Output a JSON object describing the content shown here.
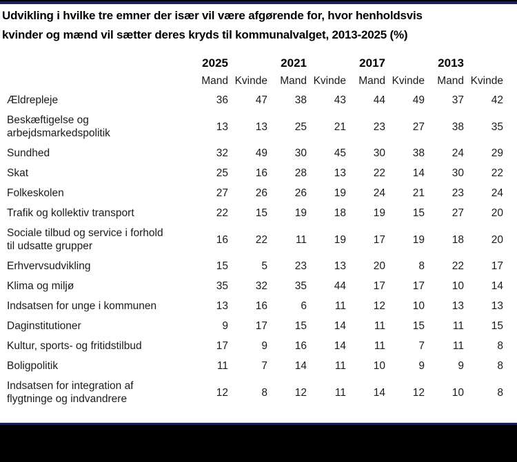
{
  "colors": {
    "border_navy": "#1e2155",
    "frame_black": "#000000"
  },
  "chart_data": {
    "type": "table",
    "title": "Udvikling i hvilke tre emner der især vil være afgørende for, hvor henholdsvis\nkvinder og mænd vil sætter deres kryds til kommunalvalget, 2013-2025 (%)",
    "years": [
      "2025",
      "2021",
      "2017",
      "2013"
    ],
    "genders": [
      "Mand",
      "Kvinde"
    ],
    "columns": [
      "2025 Mand",
      "2025 Kvinde",
      "2021 Mand",
      "2021 Kvinde",
      "2017 Mand",
      "2017 Kvinde",
      "2013 Mand",
      "2013 Kvinde"
    ],
    "rows": [
      {
        "label": "Ældrepleje",
        "values": [
          36,
          47,
          38,
          43,
          44,
          49,
          37,
          42
        ]
      },
      {
        "label": "Beskæftigelse og\narbejdsmarkedspolitik",
        "values": [
          13,
          13,
          25,
          21,
          23,
          27,
          38,
          35
        ]
      },
      {
        "label": "Sundhed",
        "values": [
          32,
          49,
          30,
          45,
          30,
          38,
          24,
          29
        ]
      },
      {
        "label": "Skat",
        "values": [
          25,
          16,
          28,
          13,
          22,
          14,
          30,
          22
        ]
      },
      {
        "label": "Folkeskolen",
        "values": [
          27,
          26,
          26,
          19,
          24,
          21,
          23,
          24
        ]
      },
      {
        "label": "Trafik og kollektiv transport",
        "values": [
          22,
          15,
          19,
          18,
          19,
          15,
          27,
          20
        ]
      },
      {
        "label": "Sociale tilbud og service i forhold\ntil udsatte grupper",
        "values": [
          16,
          22,
          11,
          19,
          17,
          19,
          18,
          20
        ]
      },
      {
        "label": "Erhvervsudvikling",
        "values": [
          15,
          5,
          23,
          13,
          20,
          8,
          22,
          17
        ]
      },
      {
        "label": "Klima og miljø",
        "values": [
          35,
          32,
          35,
          44,
          17,
          17,
          10,
          14
        ]
      },
      {
        "label": "Indsatsen for unge i kommunen",
        "values": [
          13,
          16,
          6,
          11,
          12,
          10,
          13,
          13
        ]
      },
      {
        "label": "Daginstitutioner",
        "values": [
          9,
          17,
          15,
          14,
          11,
          15,
          11,
          15
        ]
      },
      {
        "label": "Kultur, sports- og fritidstilbud",
        "values": [
          17,
          9,
          16,
          14,
          11,
          7,
          11,
          8
        ]
      },
      {
        "label": "Boligpolitik",
        "values": [
          11,
          7,
          14,
          11,
          10,
          9,
          9,
          8
        ]
      },
      {
        "label": "Indsatsen for integration af\nflygtninge og indvandrere",
        "values": [
          12,
          8,
          12,
          11,
          14,
          12,
          10,
          8
        ]
      }
    ]
  }
}
